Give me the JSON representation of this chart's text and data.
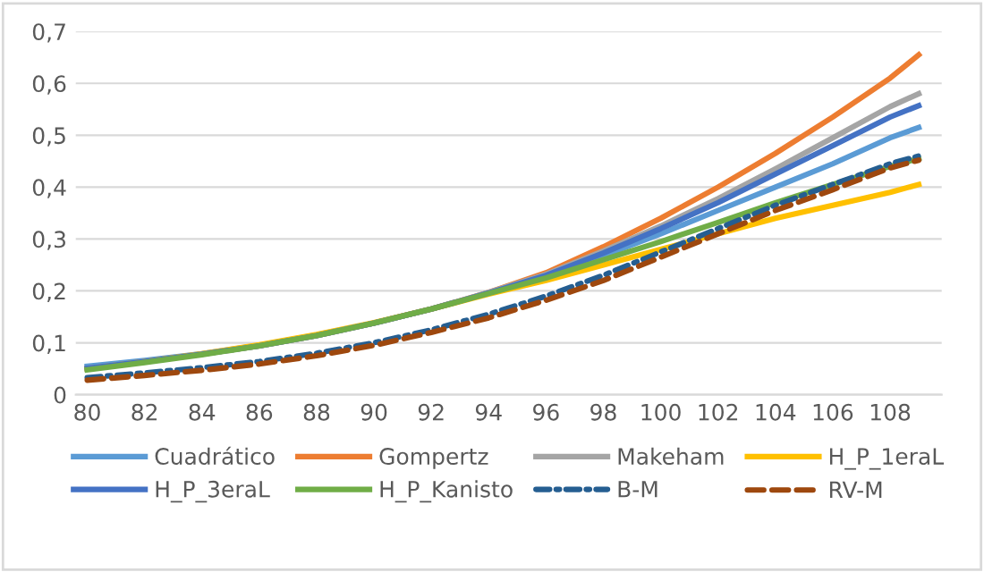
{
  "chart_data": {
    "type": "line",
    "x": [
      80,
      82,
      84,
      86,
      88,
      90,
      92,
      94,
      96,
      98,
      100,
      102,
      104,
      106,
      108,
      109
    ],
    "series": [
      {
        "name": "Cuadrático",
        "color": "#5b9bd5",
        "values": [
          0.055,
          0.066,
          0.079,
          0.095,
          0.115,
          0.138,
          0.165,
          0.196,
          0.228,
          0.268,
          0.31,
          0.355,
          0.4,
          0.445,
          0.495,
          0.515
        ]
      },
      {
        "name": "Gompertz",
        "color": "#ed7d31",
        "values": [
          0.05,
          0.063,
          0.078,
          0.094,
          0.114,
          0.138,
          0.165,
          0.197,
          0.235,
          0.285,
          0.34,
          0.4,
          0.465,
          0.535,
          0.61,
          0.655
        ]
      },
      {
        "name": "Makeham",
        "color": "#a5a5a5",
        "values": [
          0.051,
          0.064,
          0.078,
          0.094,
          0.114,
          0.138,
          0.165,
          0.197,
          0.232,
          0.277,
          0.325,
          0.378,
          0.435,
          0.495,
          0.555,
          0.58
        ]
      },
      {
        "name": "H_P_1eraL",
        "color": "#ffc000",
        "values": [
          0.05,
          0.064,
          0.079,
          0.096,
          0.116,
          0.139,
          0.165,
          0.194,
          0.22,
          0.25,
          0.28,
          0.31,
          0.34,
          0.365,
          0.39,
          0.405
        ]
      },
      {
        "name": "H_P_3eraL",
        "color": "#4472c4",
        "values": [
          0.051,
          0.064,
          0.078,
          0.094,
          0.114,
          0.138,
          0.165,
          0.196,
          0.23,
          0.273,
          0.32,
          0.37,
          0.425,
          0.48,
          0.535,
          0.557
        ]
      },
      {
        "name": "H_P_Kanisto",
        "color": "#70ad47",
        "values": [
          0.048,
          0.062,
          0.077,
          0.094,
          0.114,
          0.138,
          0.165,
          0.195,
          0.225,
          0.26,
          0.295,
          0.332,
          0.37,
          0.405,
          0.44,
          0.455
        ]
      },
      {
        "name": "B-M",
        "color": "#255e91",
        "line_style": "dashdot",
        "values": [
          0.033,
          0.042,
          0.052,
          0.064,
          0.08,
          0.1,
          0.125,
          0.155,
          0.19,
          0.23,
          0.275,
          0.32,
          0.365,
          0.405,
          0.445,
          0.46
        ]
      },
      {
        "name": "RV-M",
        "color": "#9e480e",
        "line_style": "dashed",
        "values": [
          0.028,
          0.037,
          0.047,
          0.059,
          0.075,
          0.095,
          0.12,
          0.148,
          0.182,
          0.22,
          0.265,
          0.31,
          0.355,
          0.395,
          0.437,
          0.452
        ]
      }
    ],
    "xlim": [
      79.6,
      109.8
    ],
    "xticks": [
      80,
      82,
      84,
      86,
      88,
      90,
      92,
      94,
      96,
      98,
      100,
      102,
      104,
      106,
      108
    ],
    "ylim": [
      0,
      0.7
    ],
    "yticks": [
      {
        "value": 0,
        "label": "0"
      },
      {
        "value": 0.1,
        "label": "0,1"
      },
      {
        "value": 0.2,
        "label": "0,2"
      },
      {
        "value": 0.3,
        "label": "0,3"
      },
      {
        "value": 0.4,
        "label": "0,4"
      },
      {
        "value": 0.5,
        "label": "0,5"
      },
      {
        "value": 0.6,
        "label": "0,6"
      },
      {
        "value": 0.7,
        "label": "0,7"
      }
    ],
    "grid": "y",
    "legend": "bottom",
    "line_style": "solid",
    "marker": "none"
  }
}
